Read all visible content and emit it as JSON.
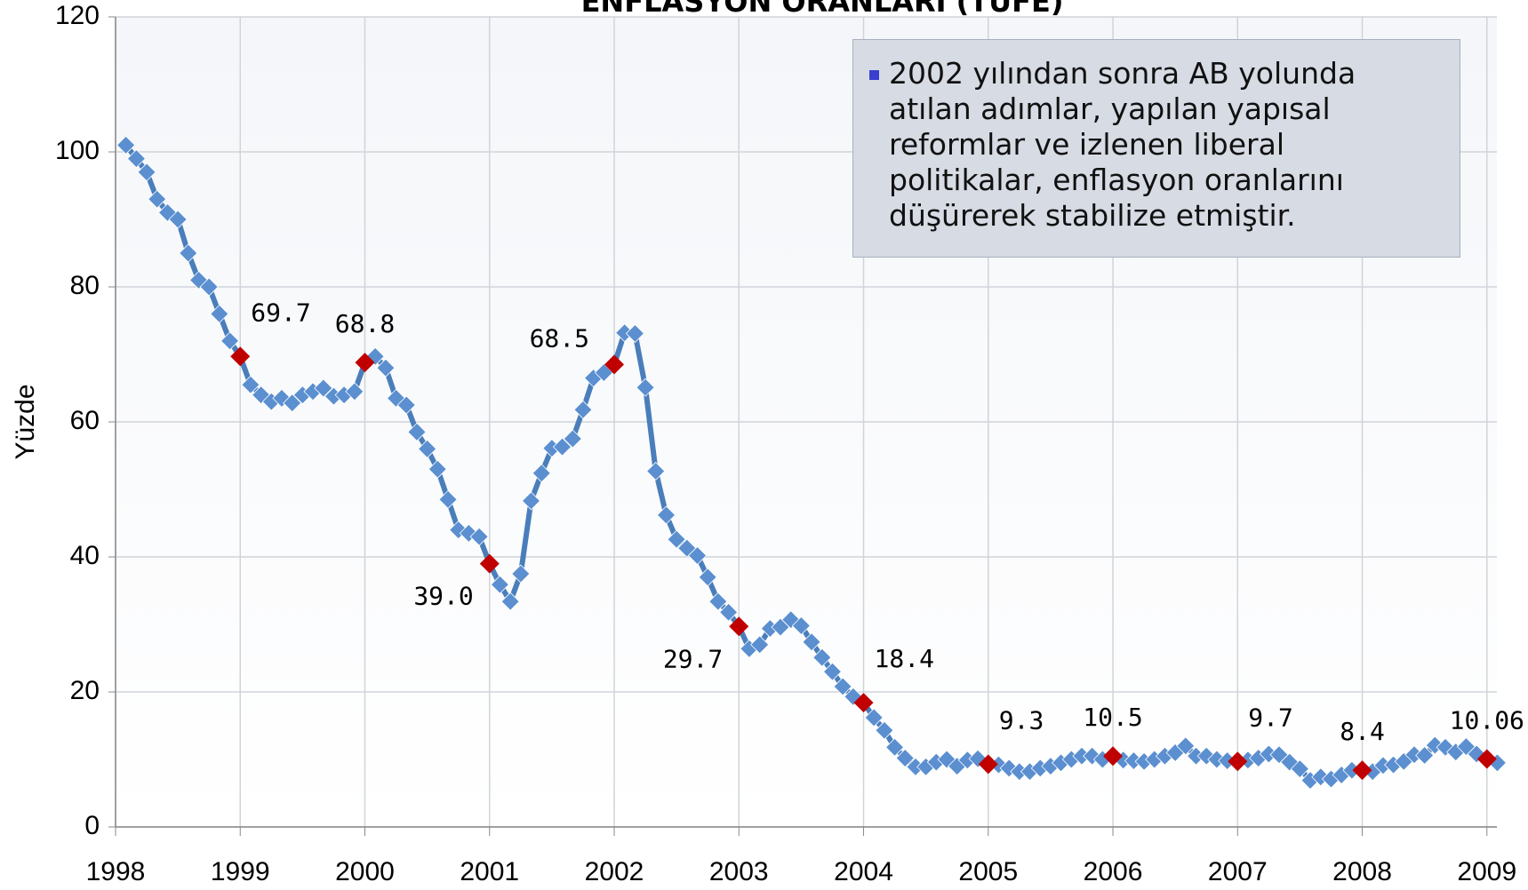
{
  "chart_data": {
    "type": "line",
    "title": "ENFLASYON ORANLARI (TÜFE)",
    "y_label": "Yüzde",
    "note": "2002 yılından sonra AB yolunda atılan adımlar, yapılan yapısal reformlar ve izlenen liberal politikalar, enflasyon oranlarını düşürerek stabilize etmiştir.",
    "xlim": [
      1998,
      2009.08
    ],
    "xticks": [
      1998,
      1999,
      2000,
      2001,
      2002,
      2003,
      2004,
      2005,
      2006,
      2007,
      2008,
      2009
    ],
    "ylim": [
      0,
      120
    ],
    "yticks": [
      0,
      20,
      40,
      60,
      80,
      100,
      120
    ],
    "grid": true,
    "x": [
      1998.083,
      1998.167,
      1998.25,
      1998.333,
      1998.417,
      1998.5,
      1998.583,
      1998.667,
      1998.75,
      1998.833,
      1998.917,
      1999,
      1999.083,
      1999.167,
      1999.25,
      1999.333,
      1999.417,
      1999.5,
      1999.583,
      1999.667,
      1999.75,
      1999.833,
      1999.917,
      2000,
      2000.083,
      2000.167,
      2000.25,
      2000.333,
      2000.417,
      2000.5,
      2000.583,
      2000.667,
      2000.75,
      2000.833,
      2000.917,
      2001,
      2001.083,
      2001.167,
      2001.25,
      2001.333,
      2001.417,
      2001.5,
      2001.583,
      2001.667,
      2001.75,
      2001.833,
      2001.917,
      2002,
      2002.083,
      2002.167,
      2002.25,
      2002.333,
      2002.417,
      2002.5,
      2002.583,
      2002.667,
      2002.75,
      2002.833,
      2002.917,
      2003,
      2003.083,
      2003.167,
      2003.25,
      2003.333,
      2003.417,
      2003.5,
      2003.583,
      2003.667,
      2003.75,
      2003.833,
      2003.917,
      2004,
      2004.083,
      2004.167,
      2004.25,
      2004.333,
      2004.417,
      2004.5,
      2004.583,
      2004.667,
      2004.75,
      2004.833,
      2004.917,
      2005,
      2005.083,
      2005.167,
      2005.25,
      2005.333,
      2005.417,
      2005.5,
      2005.583,
      2005.667,
      2005.75,
      2005.833,
      2005.917,
      2006,
      2006.083,
      2006.167,
      2006.25,
      2006.333,
      2006.417,
      2006.5,
      2006.583,
      2006.667,
      2006.75,
      2006.833,
      2006.917,
      2007,
      2007.083,
      2007.167,
      2007.25,
      2007.333,
      2007.417,
      2007.5,
      2007.583,
      2007.667,
      2007.75,
      2007.833,
      2007.917,
      2008,
      2008.083,
      2008.167,
      2008.25,
      2008.333,
      2008.417,
      2008.5,
      2008.583,
      2008.667,
      2008.75,
      2008.833,
      2008.917,
      2009,
      2009.083
    ],
    "series": [
      {
        "name": "TÜFE",
        "color": "#4a7ebb",
        "marker_color": "#5b8fd0",
        "values": [
          101,
          99,
          97,
          93,
          91,
          90,
          85,
          81,
          80,
          76,
          72,
          69.7,
          65.5,
          64,
          63,
          63.5,
          62.8,
          64,
          64.5,
          65,
          63.8,
          64,
          64.5,
          68.8,
          69.7,
          68,
          63.5,
          62.5,
          58.5,
          56,
          53,
          48.5,
          44,
          43.5,
          43,
          39.0,
          35.9,
          33.4,
          37.5,
          48.3,
          52.4,
          56.1,
          56.3,
          57.5,
          61.8,
          66.5,
          67.3,
          68.5,
          73.2,
          73.1,
          65.1,
          52.7,
          46.2,
          42.6,
          41.3,
          40.2,
          37.0,
          33.4,
          31.8,
          29.7,
          26.4,
          27.0,
          29.4,
          29.6,
          30.7,
          29.8,
          27.4,
          25.1,
          23.0,
          20.8,
          19.3,
          18.4,
          16.2,
          14.3,
          11.8,
          10.2,
          8.9,
          8.9,
          9.6,
          10.0,
          9.0,
          9.9,
          10.1,
          9.3,
          9.2,
          8.7,
          8.2,
          8.2,
          8.7,
          9.0,
          9.5,
          10.0,
          10.5,
          10.5,
          10.0,
          10.5,
          9.9,
          9.8,
          9.7,
          10.0,
          10.5,
          11.0,
          12.0,
          10.5,
          10.5,
          10.0,
          9.8,
          9.7,
          9.9,
          10.2,
          10.8,
          10.7,
          9.6,
          8.6,
          6.9,
          7.4,
          7.1,
          7.7,
          8.4,
          8.4,
          8.2,
          9.1,
          9.2,
          9.7,
          10.7,
          10.6,
          12.1,
          11.8,
          11.1,
          11.9,
          10.8,
          10.06,
          9.5
        ]
      }
    ],
    "highlight_color": "#c00000",
    "annotations": [
      {
        "x": 1999,
        "y": 69.7,
        "label": "69.7",
        "position": "above-right"
      },
      {
        "x": 2000,
        "y": 68.8,
        "label": "68.8",
        "position": "above"
      },
      {
        "x": 2001,
        "y": 39.0,
        "label": "39.0",
        "position": "below-left"
      },
      {
        "x": 2002,
        "y": 68.5,
        "label": "68.5",
        "position": "above-left"
      },
      {
        "x": 2003,
        "y": 29.7,
        "label": "29.7",
        "position": "below-left"
      },
      {
        "x": 2004,
        "y": 18.4,
        "label": "18.4",
        "position": "above-right"
      },
      {
        "x": 2005,
        "y": 9.3,
        "label": "9.3",
        "position": "above-right"
      },
      {
        "x": 2006,
        "y": 10.5,
        "label": "10.5",
        "position": "above"
      },
      {
        "x": 2007,
        "y": 9.7,
        "label": "9.7",
        "position": "above-right"
      },
      {
        "x": 2008,
        "y": 8.4,
        "label": "8.4",
        "position": "above"
      },
      {
        "x": 2009,
        "y": 10.06,
        "label": "10.06",
        "position": "above"
      }
    ]
  }
}
